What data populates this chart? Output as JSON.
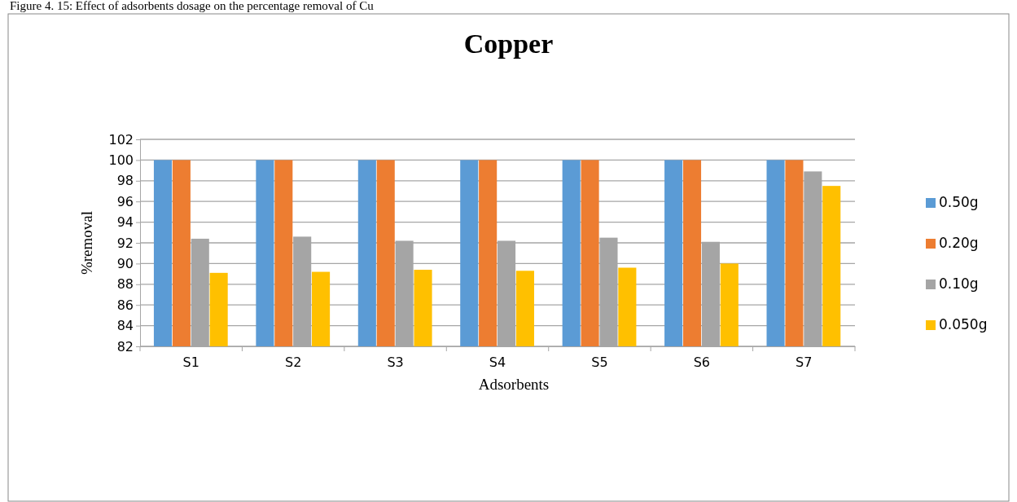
{
  "chart_data": {
    "type": "bar",
    "title": "Copper",
    "xlabel": "Adsorbents",
    "ylabel": "%removal",
    "annotations": [
      "Figure 4. 15: Effect of adsorbents dosage on the percentage removal of Cu"
    ],
    "categories": [
      "S1",
      "S2",
      "S3",
      "S4",
      "S5",
      "S6",
      "S7"
    ],
    "series": [
      {
        "name": "0.50g",
        "color": "#5b9bd5",
        "values": [
          100,
          100,
          100,
          100,
          100,
          100,
          100
        ]
      },
      {
        "name": "0.20g",
        "color": "#ed7d31",
        "values": [
          100,
          100,
          100,
          100,
          100,
          100,
          100
        ]
      },
      {
        "name": "0.10g",
        "color": "#a5a5a5",
        "values": [
          92.4,
          92.6,
          92.2,
          92.2,
          92.5,
          92.1,
          98.9
        ]
      },
      {
        "name": "0.050g",
        "color": "#ffc000",
        "values": [
          89.1,
          89.2,
          89.4,
          89.3,
          89.6,
          90.0,
          97.5
        ]
      }
    ],
    "ylim": [
      82,
      102
    ],
    "yticks": [
      82,
      84,
      86,
      88,
      90,
      92,
      94,
      96,
      98,
      100,
      102
    ],
    "grid": "y",
    "legend": "right"
  }
}
